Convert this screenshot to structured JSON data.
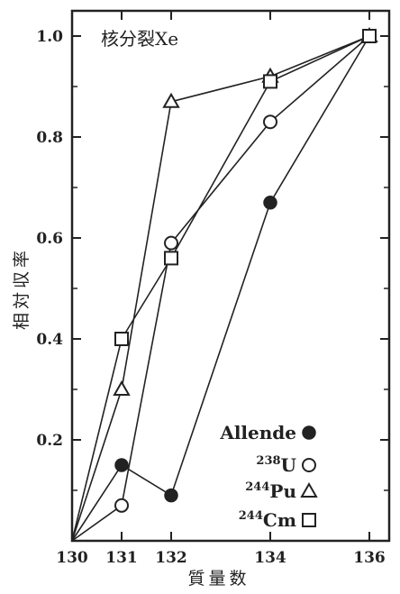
{
  "colors": {
    "ink": "#222222",
    "background": "#ffffff"
  },
  "chart_data": {
    "type": "line",
    "title": "核分裂Xe",
    "xlabel": "質量数",
    "ylabel": "相対収率",
    "xlim": [
      130,
      136.4
    ],
    "ylim": [
      0,
      1.05
    ],
    "x_ticks": [
      130,
      131,
      132,
      134,
      136
    ],
    "x_tick_labels": [
      "130",
      "131",
      "132",
      "134",
      "136"
    ],
    "y_ticks": [
      0.2,
      0.4,
      0.6,
      0.8,
      1.0
    ],
    "y_tick_labels": [
      "0.2",
      "0.4",
      "0.6",
      "0.8",
      "1.0"
    ],
    "grid": false,
    "legend_position": "bottom-right",
    "series": [
      {
        "name": "Allende",
        "superscript": "",
        "marker": "filled-circle",
        "x": [
          130,
          131,
          132,
          134,
          136
        ],
        "y": [
          0.0,
          0.15,
          0.09,
          0.67,
          1.0
        ]
      },
      {
        "name": "U",
        "superscript": "238",
        "marker": "open-circle",
        "x": [
          130,
          131,
          132,
          134,
          136
        ],
        "y": [
          0.0,
          0.07,
          0.59,
          0.83,
          1.0
        ]
      },
      {
        "name": "Pu",
        "superscript": "244",
        "marker": "open-triangle",
        "x": [
          130,
          131,
          132,
          134,
          136
        ],
        "y": [
          0.0,
          0.3,
          0.87,
          0.92,
          1.0
        ]
      },
      {
        "name": "Cm",
        "superscript": "244",
        "marker": "open-square",
        "x": [
          130,
          131,
          132,
          134,
          136
        ],
        "y": [
          0.0,
          0.4,
          0.56,
          0.91,
          1.0
        ]
      }
    ]
  }
}
